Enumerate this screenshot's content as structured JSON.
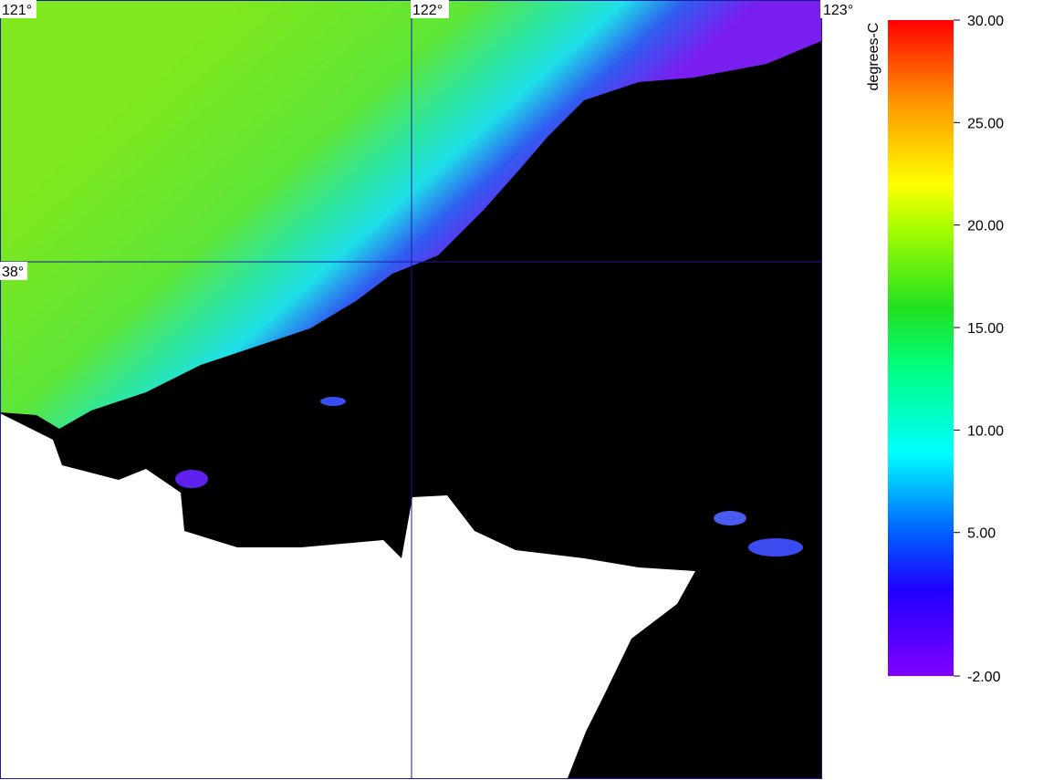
{
  "map": {
    "graticule": {
      "lon_labels": [
        "121°",
        "122°",
        "123°"
      ],
      "lat_labels": [
        "38°"
      ]
    },
    "colorbar": {
      "label": "degrees-C",
      "lim": [
        -2,
        30
      ],
      "ticks": [
        {
          "value": 30,
          "label": "30.00"
        },
        {
          "value": 25,
          "label": "25.00"
        },
        {
          "value": 20,
          "label": "20.00"
        },
        {
          "value": 15,
          "label": "15.00"
        },
        {
          "value": 10,
          "label": "10.00"
        },
        {
          "value": 5,
          "label": "5.00"
        },
        {
          "value": -2,
          "label": "-2.00"
        }
      ]
    }
  }
}
